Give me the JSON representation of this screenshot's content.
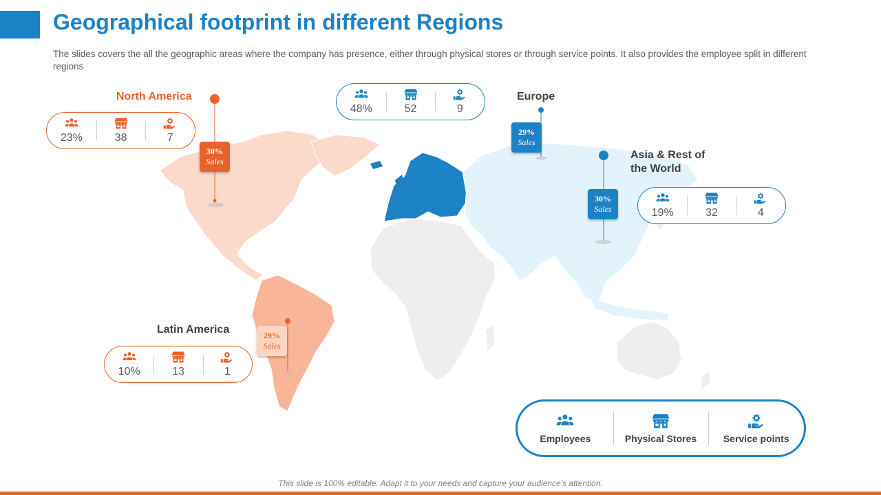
{
  "header": {
    "title": "Geographical footprint in different Regions",
    "subtitle": "The slides covers the all the geographic areas where the company has presence, either through physical stores or through service points. It also provides the employee split in different regions"
  },
  "colors": {
    "accent_blue": "#1b82c5",
    "accent_orange": "#e8632b",
    "map_north_america": "#fbd9cb",
    "map_latin_america": "#f9b597",
    "map_europe": "#1b82c5",
    "map_asia": "#e2f3fb",
    "map_other": "#eeeeee"
  },
  "icons": {
    "employees": "people-group-icon",
    "physical_stores": "store-icon",
    "service_points": "hand-gear-icon"
  },
  "regions": {
    "north_america": {
      "name": "North America",
      "sales_pct": "30%",
      "sales_label": "Sales",
      "employees": "23%",
      "stores": "38",
      "service_points": "7"
    },
    "europe": {
      "name": "Europe",
      "sales_pct": "29%",
      "sales_label": "Sales",
      "employees": "48%",
      "stores": "52",
      "service_points": "9"
    },
    "asia": {
      "name_line1": "Asia & Rest of",
      "name_line2": "the World",
      "sales_pct": "30%",
      "sales_label": "Sales",
      "employees": "19%",
      "stores": "32",
      "service_points": "4"
    },
    "latin_america": {
      "name": "Latin America",
      "sales_pct": "29%",
      "sales_label": "Sales",
      "employees": "10%",
      "stores": "13",
      "service_points": "1"
    }
  },
  "legend": {
    "employees": "Employees",
    "physical_stores": "Physical Stores",
    "service_points": "Service points"
  },
  "footer": {
    "note": "This slide is 100% editable. Adapt it to your needs and capture your audience's attention."
  }
}
